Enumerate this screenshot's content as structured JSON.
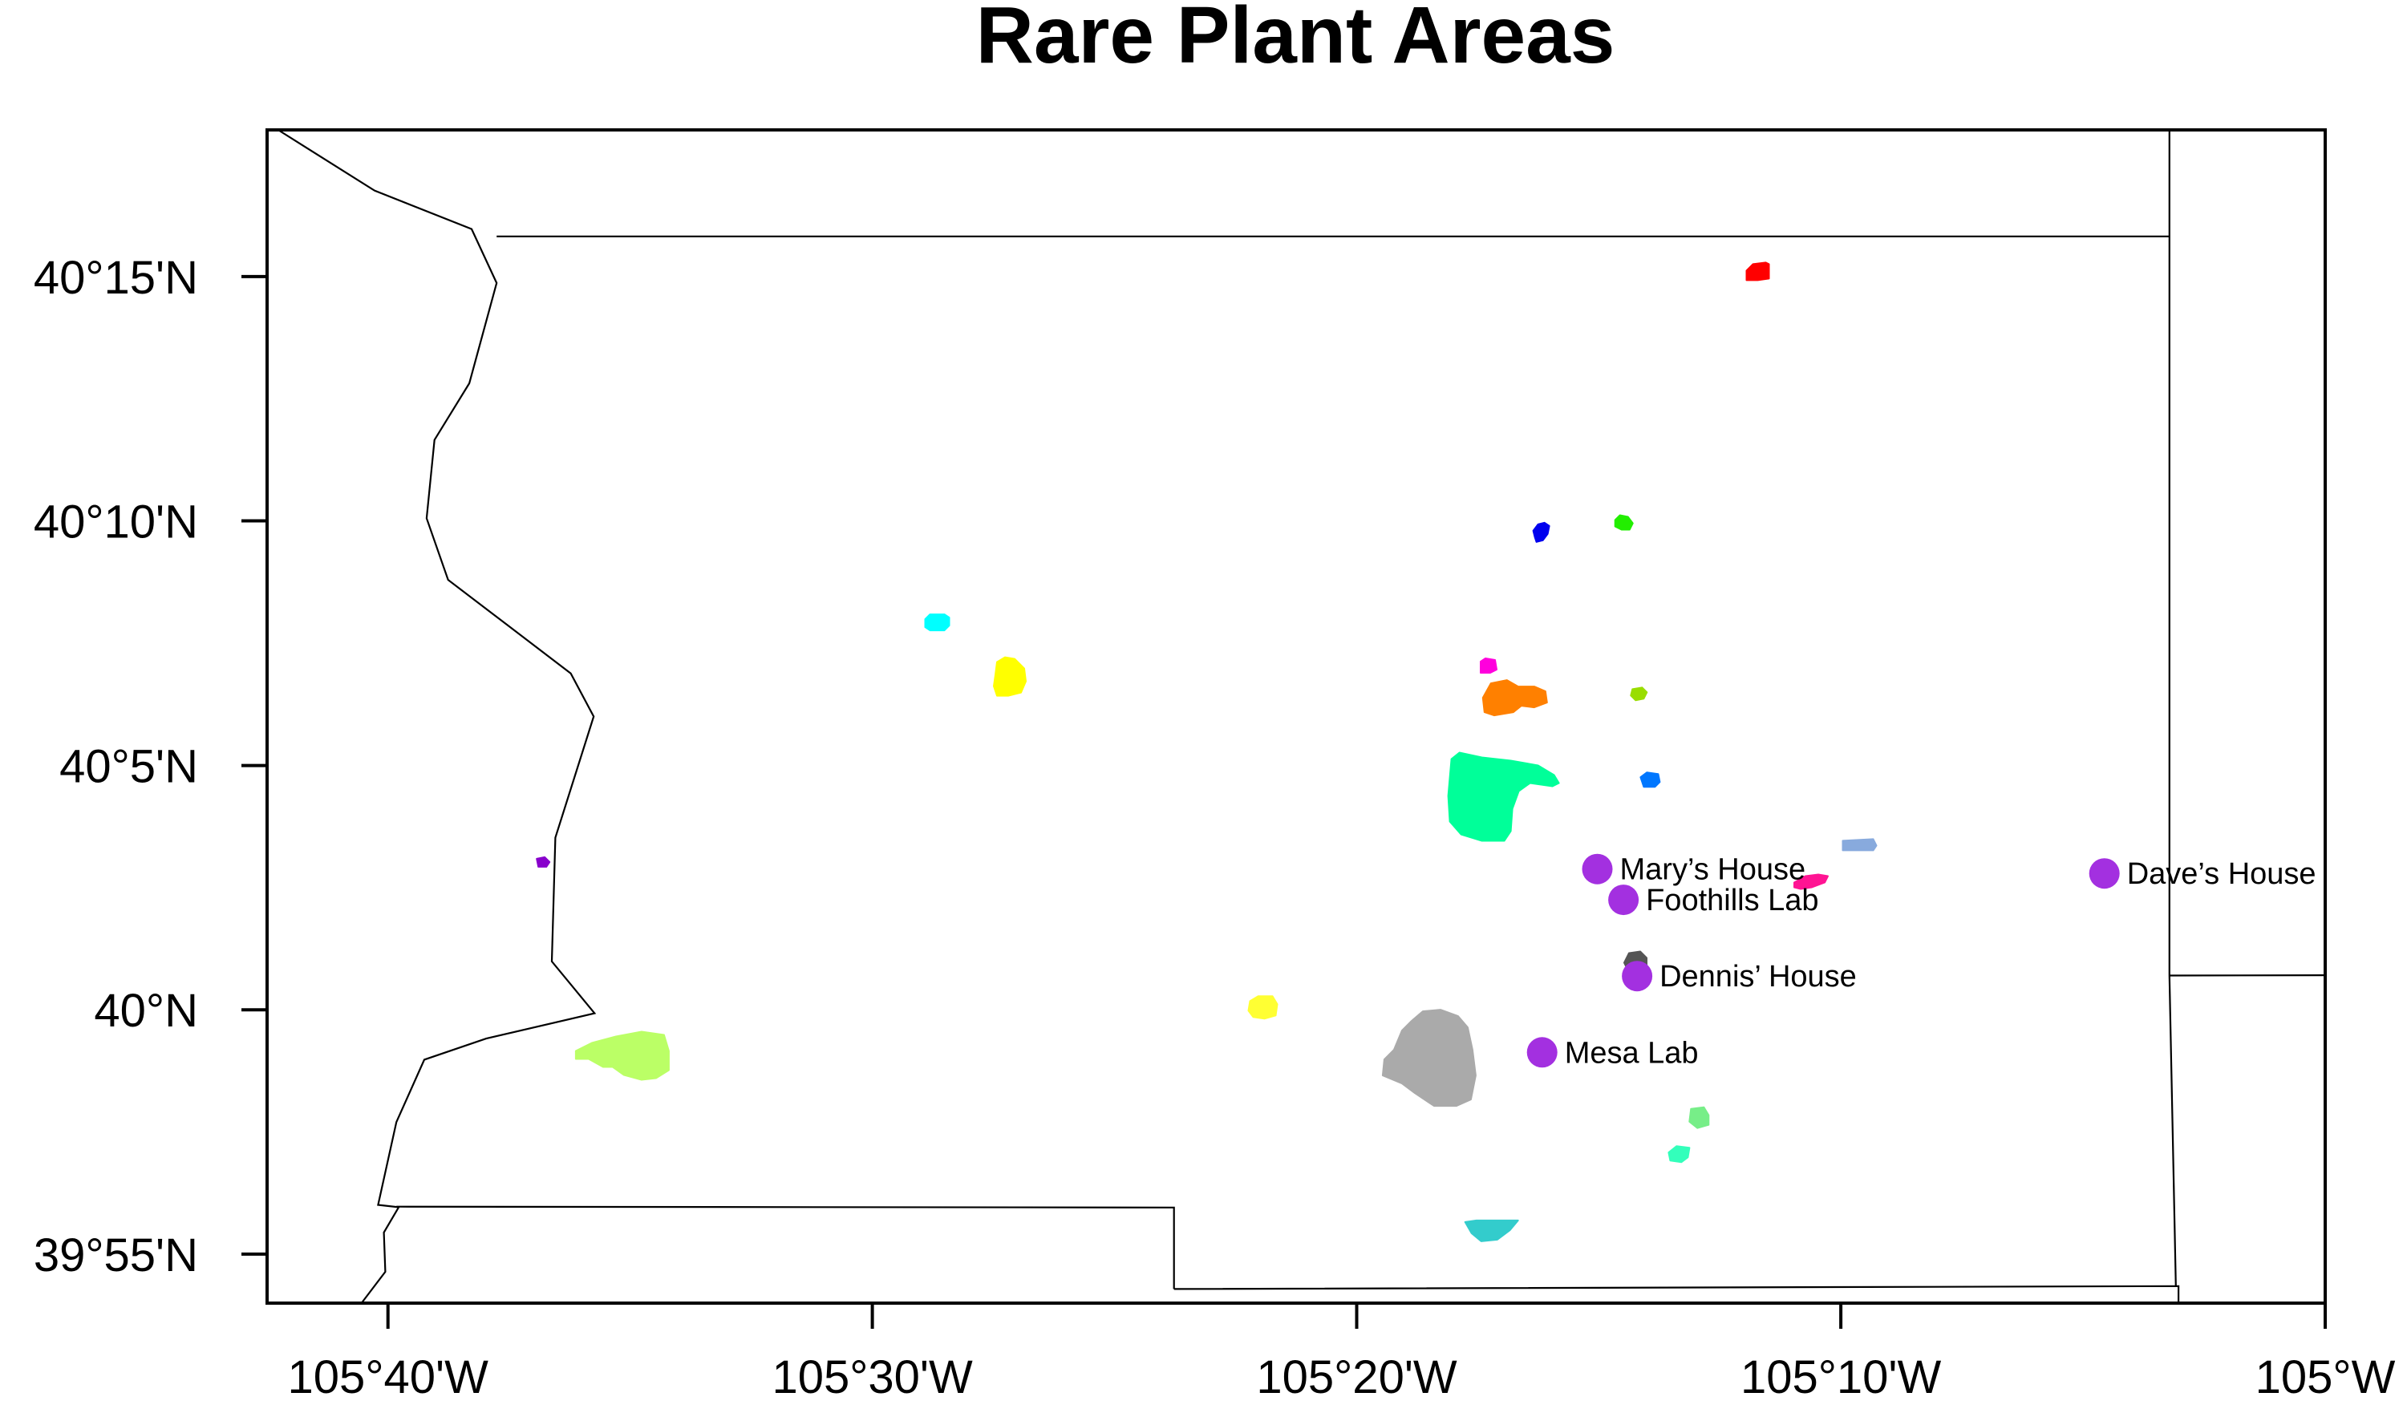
{
  "title": "Rare Plant Areas",
  "axes": {
    "lon_range": [
      -105.7083,
      -105.0
    ],
    "lat_range": [
      39.9,
      40.3
    ],
    "x_ticks": [
      {
        "lon": -105.6667,
        "label": "105°40'W"
      },
      {
        "lon": -105.5,
        "label": "105°30'W"
      },
      {
        "lon": -105.3333,
        "label": "105°20'W"
      },
      {
        "lon": -105.1667,
        "label": "105°10'W"
      },
      {
        "lon": -105.0,
        "label": "105°W"
      }
    ],
    "y_ticks": [
      {
        "lat": 40.25,
        "label": "40°15'N"
      },
      {
        "lat": 40.1667,
        "label": "40°10'N"
      },
      {
        "lat": 40.0833,
        "label": "40°5'N"
      },
      {
        "lat": 40.0,
        "label": "40°N"
      },
      {
        "lat": 39.9167,
        "label": "39°55'N"
      }
    ]
  },
  "sites": [
    {
      "name": "Mary's House",
      "label": "Mary’s House",
      "lon": -105.2505,
      "lat": 40.048,
      "color": "#a330e0"
    },
    {
      "name": "Foothills Lab",
      "label": "Foothills Lab",
      "lon": -105.2415,
      "lat": 40.0375,
      "color": "#a330e0"
    },
    {
      "name": "Dennis' House",
      "label": "Dennis’ House",
      "lon": -105.2368,
      "lat": 40.0115,
      "color": "#a330e0"
    },
    {
      "name": "Mesa Lab",
      "label": "Mesa Lab",
      "lon": -105.2695,
      "lat": 39.9855,
      "color": "#a330e0"
    },
    {
      "name": "Dave's House",
      "label": "Dave’s House",
      "lon": -105.076,
      "lat": 40.0465,
      "color": "#a330e0"
    }
  ],
  "plant_areas": [
    {
      "id": "red",
      "color": "#ff0000",
      "lon": -105.1953,
      "lat": 40.2515
    },
    {
      "id": "blue",
      "color": "#0000ee",
      "lon": -105.2698,
      "lat": 40.1628
    },
    {
      "id": "green",
      "color": "#22ee00",
      "lon": -105.2416,
      "lat": 40.1659
    },
    {
      "id": "cyan",
      "color": "#00ffff",
      "lon": -105.4774,
      "lat": 40.1321
    },
    {
      "id": "yellow-north",
      "color": "#ffff00",
      "lon": -105.4527,
      "lat": 40.1131
    },
    {
      "id": "magenta",
      "color": "#ff00dd",
      "lon": -105.2879,
      "lat": 40.1171
    },
    {
      "id": "orange",
      "color": "#ff8000",
      "lon": -105.2805,
      "lat": 40.1053
    },
    {
      "id": "lime-dot",
      "color": "#99dd00",
      "lon": -105.2362,
      "lat": 40.1077
    },
    {
      "id": "azure",
      "color": "#0077ff",
      "lon": -105.2323,
      "lat": 40.0782
    },
    {
      "id": "spring-green",
      "color": "#00ff99",
      "lon": -105.2858,
      "lat": 40.0713
    },
    {
      "id": "steel-blue",
      "color": "#88aadd",
      "lon": -105.1605,
      "lat": 40.056
    },
    {
      "id": "violet-dot",
      "color": "#8800cc",
      "lon": -105.6133,
      "lat": 40.0504
    },
    {
      "id": "deep-pink",
      "color": "#ff1493",
      "lon": -105.1772,
      "lat": 40.0434
    },
    {
      "id": "dark-gray",
      "color": "#555555",
      "lon": -105.2374,
      "lat": 40.0166
    },
    {
      "id": "yellow-south",
      "color": "#ffff33",
      "lon": -105.3656,
      "lat": 40.0008
    },
    {
      "id": "light-green",
      "color": "#bbff66",
      "lon": -105.5855,
      "lat": 39.9849
    },
    {
      "id": "gray",
      "color": "#aaaaaa",
      "lon": -105.3034,
      "lat": 39.9831
    },
    {
      "id": "pale-green",
      "color": "#77ee88",
      "lon": -105.2155,
      "lat": 39.9635
    },
    {
      "id": "aquamarine",
      "color": "#33ffbb",
      "lon": -105.2221,
      "lat": 39.9508
    },
    {
      "id": "teal",
      "color": "#33cccc",
      "lon": -105.2877,
      "lat": 39.9249
    }
  ],
  "boundaries": [
    {
      "id": "west-boundary",
      "points": [
        [
          -105.7045,
          40.3
        ],
        [
          -105.6713,
          40.2793
        ],
        [
          -105.6379,
          40.2662
        ],
        [
          -105.6293,
          40.2478
        ],
        [
          -105.6387,
          40.2136
        ],
        [
          -105.6507,
          40.1943
        ],
        [
          -105.6534,
          40.1676
        ],
        [
          -105.646,
          40.1466
        ],
        [
          -105.6038,
          40.1147
        ],
        [
          -105.5959,
          40.1
        ],
        [
          -105.6091,
          40.0587
        ],
        [
          -105.6103,
          40.0165
        ],
        [
          -105.5956,
          39.9988
        ],
        [
          -105.6329,
          39.9902
        ],
        [
          -105.6542,
          39.983
        ],
        [
          -105.6638,
          39.9617
        ],
        [
          -105.6701,
          39.9335
        ],
        [
          -105.663,
          39.9327
        ],
        [
          -105.6681,
          39.9241
        ],
        [
          -105.6676,
          39.9107
        ],
        [
          -105.6758,
          39.9
        ]
      ]
    },
    {
      "id": "south-west-line",
      "points": [
        [
          -105.6638,
          39.9329
        ],
        [
          -105.3962,
          39.9326
        ],
        [
          -105.3962,
          39.9048
        ]
      ]
    },
    {
      "id": "south-east-line",
      "points": [
        [
          -105.3962,
          39.9048
        ],
        [
          -105.0505,
          39.9058
        ],
        [
          -105.0505,
          39.9
        ]
      ]
    },
    {
      "id": "north-line",
      "points": [
        [
          -105.6293,
          40.2637
        ],
        [
          -105.0536,
          40.2637
        ]
      ]
    },
    {
      "id": "east-line-north",
      "points": [
        [
          -105.0536,
          40.3
        ],
        [
          -105.0536,
          40.0117
        ]
      ]
    },
    {
      "id": "east-line-mid",
      "points": [
        [
          -105.0536,
          40.0117
        ],
        [
          -105.0,
          40.0118
        ]
      ]
    },
    {
      "id": "east-line-south",
      "points": [
        [
          -105.0536,
          40.0117
        ],
        [
          -105.0514,
          39.9058
        ]
      ]
    }
  ]
}
